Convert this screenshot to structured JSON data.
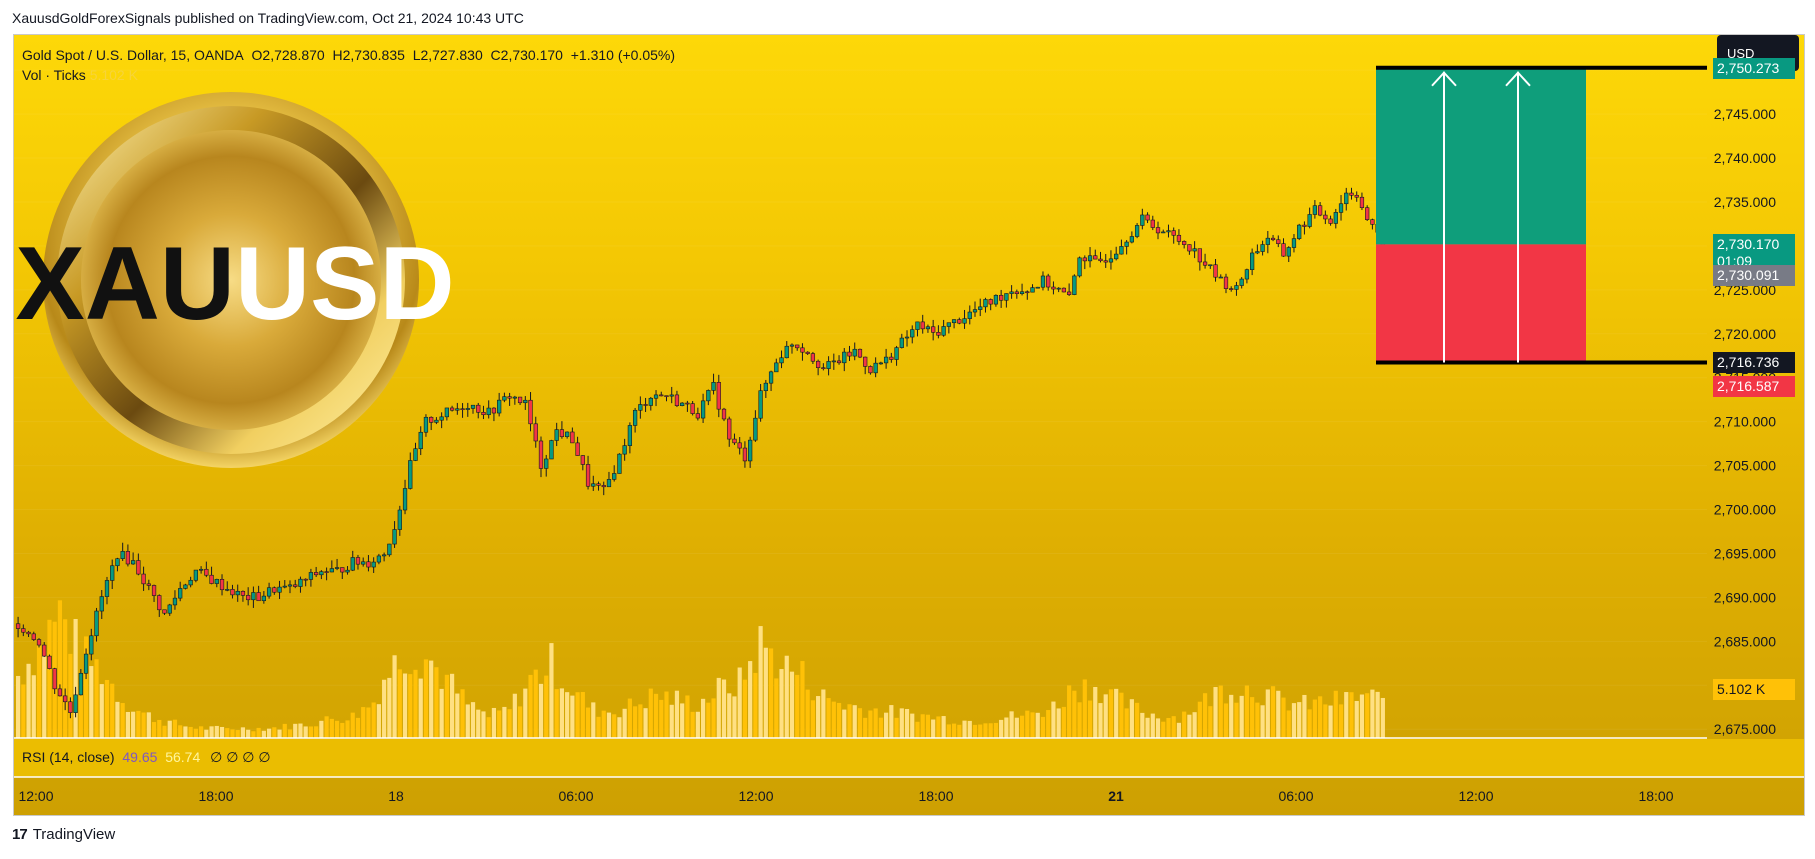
{
  "header": {
    "published": "XauusdGoldForexSignals published on TradingView.com, Oct 21, 2024 10:43 UTC"
  },
  "legend": {
    "symbol": "Gold Spot / U.S. Dollar, 15, OANDA",
    "open": "O2,728.870",
    "high": "H2,730.835",
    "low": "L2,727.830",
    "close": "C2,730.170",
    "change": "+1.310 (+0.05%)",
    "vol_label": "Vol · Ticks",
    "vol_value": "5.102 K"
  },
  "rsi_legend": {
    "label": "RSI (14, close)",
    "value1": "49.65",
    "value2": "56.74",
    "extra": "∅ ∅ ∅ ∅"
  },
  "currency_button": "USD",
  "logo": {
    "text_dark": "XAU",
    "text_light": "USD"
  },
  "price_tags": {
    "target": "2,750.273",
    "current": "2,730.170",
    "countdown": "01:09",
    "grey": "2,730.091",
    "entry": "2,716.736",
    "stop": "2,716.587",
    "volume": "5.102 K"
  },
  "footer": {
    "brand": "TradingView"
  },
  "colors": {
    "up": "#089981",
    "down": "#f23645",
    "target_zone": "#0f9e7b",
    "stop_zone": "#f23645",
    "volume": "#ffc107"
  },
  "chart_data": {
    "type": "candlestick",
    "title": "Gold Spot / U.S. Dollar, 15, OANDA",
    "ylim": [
      2674,
      2754
    ],
    "yticks": [
      "2,675.000",
      "2,680.000",
      "2,685.000",
      "2,690.000",
      "2,695.000",
      "2,700.000",
      "2,705.000",
      "2,710.000",
      "2,715.000",
      "2,720.000",
      "2,725.000",
      "2,730.000",
      "2,735.000",
      "2,740.000",
      "2,745.000",
      "2,750.000"
    ],
    "xticks": [
      "12:00",
      "18:00",
      "18",
      "06:00",
      "12:00",
      "18:00",
      "21",
      "06:00",
      "12:00",
      "18:00"
    ],
    "close_path": [
      [
        0,
        2687
      ],
      [
        4,
        2685
      ],
      [
        7,
        2680
      ],
      [
        10,
        2677
      ],
      [
        13,
        2684
      ],
      [
        16,
        2690
      ],
      [
        19,
        2695
      ],
      [
        22,
        2694
      ],
      [
        25,
        2691
      ],
      [
        28,
        2688
      ],
      [
        31,
        2691
      ],
      [
        34,
        2693
      ],
      [
        37,
        2692
      ],
      [
        40,
        2691
      ],
      [
        43,
        2690
      ],
      [
        46,
        2690
      ],
      [
        49,
        2691
      ],
      [
        52,
        2691
      ],
      [
        55,
        2692
      ],
      [
        58,
        2693
      ],
      [
        61,
        2693
      ],
      [
        64,
        2694
      ],
      [
        67,
        2694
      ],
      [
        70,
        2695
      ],
      [
        72,
        2698
      ],
      [
        75,
        2705
      ],
      [
        78,
        2710
      ],
      [
        82,
        2711
      ],
      [
        86,
        2712
      ],
      [
        90,
        2711
      ],
      [
        94,
        2713
      ],
      [
        97,
        2712
      ],
      [
        100,
        2705
      ],
      [
        103,
        2709
      ],
      [
        106,
        2708
      ],
      [
        109,
        2703
      ],
      [
        112,
        2702
      ],
      [
        115,
        2706
      ],
      [
        118,
        2711
      ],
      [
        121,
        2713
      ],
      [
        124,
        2713
      ],
      [
        127,
        2712
      ],
      [
        130,
        2711
      ],
      [
        133,
        2714
      ],
      [
        136,
        2708
      ],
      [
        139,
        2706
      ],
      [
        142,
        2713
      ],
      [
        145,
        2717
      ],
      [
        148,
        2719
      ],
      [
        151,
        2718
      ],
      [
        154,
        2716
      ],
      [
        157,
        2717
      ],
      [
        160,
        2718
      ],
      [
        163,
        2716
      ],
      [
        166,
        2717
      ],
      [
        169,
        2719
      ],
      [
        172,
        2721
      ],
      [
        175,
        2720
      ],
      [
        178,
        2721
      ],
      [
        181,
        2722
      ],
      [
        184,
        2723
      ],
      [
        187,
        2724
      ],
      [
        190,
        2725
      ],
      [
        193,
        2725
      ],
      [
        196,
        2726
      ],
      [
        199,
        2725
      ],
      [
        201,
        2724
      ],
      [
        203,
        2729
      ],
      [
        206,
        2728
      ],
      [
        209,
        2729
      ],
      [
        212,
        2731
      ],
      [
        215,
        2733
      ],
      [
        218,
        2732
      ],
      [
        221,
        2731
      ],
      [
        224,
        2730
      ],
      [
        227,
        2728
      ],
      [
        230,
        2726
      ],
      [
        233,
        2725
      ],
      [
        236,
        2729
      ],
      [
        239,
        2731
      ],
      [
        242,
        2729
      ],
      [
        245,
        2732
      ],
      [
        248,
        2734
      ],
      [
        251,
        2733
      ],
      [
        254,
        2736
      ],
      [
        256,
        2736
      ],
      [
        258,
        2733
      ],
      [
        260,
        2731
      ],
      [
        261,
        2730.17
      ]
    ],
    "volume_path": [
      [
        0,
        2.6
      ],
      [
        4,
        3.8
      ],
      [
        8,
        5.2
      ],
      [
        12,
        3.5
      ],
      [
        16,
        2.8
      ],
      [
        20,
        1.6
      ],
      [
        24,
        1.0
      ],
      [
        28,
        0.7
      ],
      [
        32,
        0.5
      ],
      [
        36,
        0.4
      ],
      [
        40,
        0.4
      ],
      [
        44,
        0.4
      ],
      [
        48,
        0.4
      ],
      [
        52,
        0.5
      ],
      [
        56,
        0.6
      ],
      [
        60,
        0.8
      ],
      [
        64,
        0.9
      ],
      [
        68,
        1.5
      ],
      [
        70,
        2.5
      ],
      [
        74,
        3.6
      ],
      [
        78,
        3.4
      ],
      [
        82,
        2.4
      ],
      [
        86,
        1.4
      ],
      [
        90,
        0.9
      ],
      [
        94,
        1.2
      ],
      [
        98,
        2.4
      ],
      [
        102,
        3.1
      ],
      [
        106,
        2.0
      ],
      [
        110,
        1.2
      ],
      [
        114,
        1.1
      ],
      [
        118,
        1.4
      ],
      [
        122,
        1.8
      ],
      [
        126,
        1.6
      ],
      [
        130,
        1.4
      ],
      [
        134,
        2.0
      ],
      [
        138,
        2.3
      ],
      [
        142,
        3.9
      ],
      [
        146,
        3.1
      ],
      [
        150,
        2.6
      ],
      [
        154,
        1.7
      ],
      [
        158,
        1.4
      ],
      [
        162,
        1.2
      ],
      [
        166,
        1.1
      ],
      [
        170,
        1.0
      ],
      [
        174,
        0.9
      ],
      [
        178,
        0.8
      ],
      [
        182,
        0.7
      ],
      [
        186,
        0.8
      ],
      [
        190,
        0.9
      ],
      [
        194,
        1.0
      ],
      [
        198,
        1.3
      ],
      [
        202,
        2.1
      ],
      [
        206,
        2.2
      ],
      [
        210,
        1.6
      ],
      [
        214,
        1.2
      ],
      [
        218,
        0.9
      ],
      [
        222,
        0.9
      ],
      [
        226,
        1.4
      ],
      [
        230,
        2.0
      ],
      [
        234,
        2.1
      ],
      [
        238,
        1.9
      ],
      [
        242,
        1.5
      ],
      [
        246,
        1.4
      ],
      [
        250,
        1.5
      ],
      [
        254,
        1.6
      ],
      [
        258,
        1.8
      ],
      [
        261,
        1.5
      ]
    ],
    "long_position": {
      "entry": 2716.736,
      "target": 2750.273,
      "stop": 2716.587,
      "current": 2730.17
    },
    "rsi": {
      "period": 14,
      "value1": 49.65,
      "value2": 56.74
    }
  }
}
